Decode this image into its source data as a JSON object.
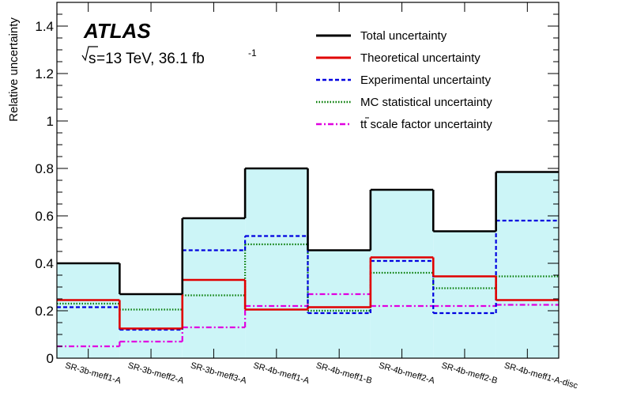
{
  "chart_data": {
    "type": "line",
    "step": true,
    "ylabel": "Relative uncertainty",
    "xlabel": "",
    "ylim": [
      0,
      1.5
    ],
    "yticks": [
      0,
      0.2,
      0.4,
      0.6,
      0.8,
      1,
      1.2,
      1.4
    ],
    "ytick_labels": [
      "0",
      "0.2",
      "0.4",
      "0.6",
      "0.8",
      "1",
      "1.2",
      "1.4"
    ],
    "categories": [
      "SR-3b-meff1-A",
      "SR-3b-meff2-A",
      "SR-3b-meff3-A",
      "SR-4b-meff1-A",
      "SR-4b-meff1-B",
      "SR-4b-meff2-A",
      "SR-4b-meff2-B",
      "SR-4b-meff1-A-disc"
    ],
    "annotations": {
      "experiment": "ATLAS",
      "energy_prefix": "s",
      "energy_text": "=13 TeV, 36.1 fb",
      "energy_exp": "-1"
    },
    "legend_position": "top-right",
    "series": [
      {
        "name": "Total uncertainty",
        "color": "#000000",
        "dash": "solid",
        "fill": "#ccf5f7",
        "values": [
          0.4,
          0.27,
          0.59,
          0.8,
          0.455,
          0.71,
          0.535,
          0.785
        ]
      },
      {
        "name": "Theoretical uncertainty",
        "color": "#e00000",
        "dash": "solid",
        "values": [
          0.245,
          0.125,
          0.33,
          0.205,
          0.215,
          0.425,
          0.345,
          0.245
        ]
      },
      {
        "name": "Experimental uncertainty",
        "color": "#0000e0",
        "dash": "dashed",
        "values": [
          0.215,
          0.12,
          0.455,
          0.515,
          0.19,
          0.41,
          0.19,
          0.58
        ]
      },
      {
        "name": "MC statistical uncertainty",
        "color": "#007a00",
        "dash": "dotted",
        "values": [
          0.23,
          0.205,
          0.265,
          0.48,
          0.2,
          0.36,
          0.295,
          0.345
        ]
      },
      {
        "name": "t",
        "name_suffix": " scale factor uncertainty",
        "color": "#e000e0",
        "dash": "dashdot",
        "values": [
          0.05,
          0.07,
          0.13,
          0.22,
          0.27,
          0.22,
          0.22,
          0.225
        ]
      }
    ]
  }
}
